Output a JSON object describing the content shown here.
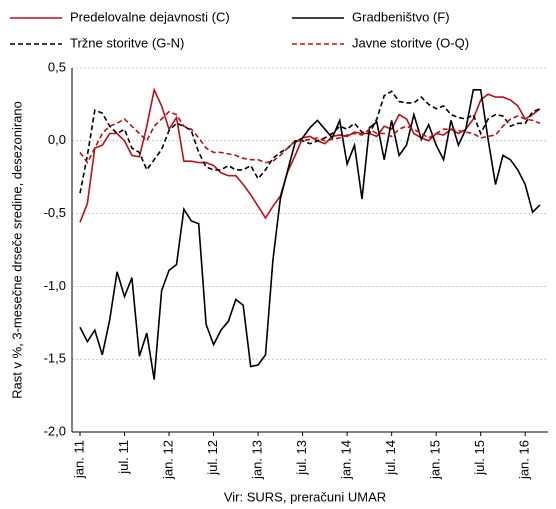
{
  "chart_data": {
    "type": "line",
    "y_label": "Rast v %, 3-mesečne drseče sredine, desezonirano",
    "source": "Vir: SURS, preračuni UMAR",
    "categories": [
      "jan. 11",
      null,
      null,
      null,
      null,
      null,
      "jul. 11",
      null,
      null,
      null,
      null,
      null,
      "jan. 12",
      null,
      null,
      null,
      null,
      null,
      "jul. 12",
      null,
      null,
      null,
      null,
      null,
      "jan. 13",
      null,
      null,
      null,
      null,
      null,
      "jul. 13",
      null,
      null,
      null,
      null,
      null,
      "jan. 14",
      null,
      null,
      null,
      null,
      null,
      "jul. 14",
      null,
      null,
      null,
      null,
      null,
      "jan. 15",
      null,
      null,
      null,
      null,
      null,
      "jul. 15",
      null,
      null,
      null,
      null,
      null,
      "jan. 16",
      null,
      null
    ],
    "ylim": [
      -2.0,
      0.5
    ],
    "yticks": [
      {
        "value": 0.5,
        "label": "0,5"
      },
      {
        "value": 0.0,
        "label": "0,0"
      },
      {
        "value": -0.5,
        "label": "-0,5"
      },
      {
        "value": -1.0,
        "label": "-1,0"
      },
      {
        "value": -1.5,
        "label": "-1,5"
      },
      {
        "value": -2.0,
        "label": "-2,0"
      }
    ],
    "grid": true,
    "series": [
      {
        "name": "Predelovalne dejavnosti (C)",
        "color": "#b5121b",
        "dash": "solid",
        "values": [
          -0.56,
          -0.43,
          -0.05,
          -0.03,
          0.05,
          0.05,
          0.0,
          -0.1,
          -0.11,
          0.1,
          0.35,
          0.24,
          0.08,
          0.16,
          -0.14,
          -0.14,
          -0.15,
          -0.15,
          -0.17,
          -0.22,
          -0.24,
          -0.24,
          -0.3,
          -0.37,
          -0.45,
          -0.53,
          -0.45,
          -0.38,
          -0.21,
          -0.1,
          0.02,
          0.03,
          0.0,
          -0.02,
          0.03,
          0.04,
          0.03,
          0.06,
          0.05,
          0.05,
          0.03,
          0.1,
          0.08,
          0.18,
          0.15,
          0.05,
          0.02,
          0.0,
          0.05,
          0.04,
          0.08,
          0.05,
          0.08,
          0.15,
          0.28,
          0.32,
          0.3,
          0.3,
          0.28,
          0.24,
          0.15,
          0.18,
          0.22
        ]
      },
      {
        "name": "Gradbeništvo (F)",
        "color": "#000000",
        "dash": "solid",
        "values": [
          -1.28,
          -1.38,
          -1.3,
          -1.47,
          -1.23,
          -0.9,
          -1.07,
          -0.94,
          -1.48,
          -1.32,
          -1.64,
          -1.03,
          -0.89,
          -0.85,
          -0.47,
          -0.55,
          -0.57,
          -1.26,
          -1.4,
          -1.3,
          -1.24,
          -1.09,
          -1.13,
          -1.55,
          -1.54,
          -1.47,
          -0.82,
          -0.4,
          -0.2,
          -0.01,
          0.02,
          0.09,
          0.14,
          0.08,
          0.02,
          0.14,
          -0.16,
          -0.03,
          -0.4,
          0.09,
          0.13,
          -0.13,
          0.14,
          -0.1,
          -0.03,
          0.18,
          0.01,
          0.11,
          -0.03,
          -0.13,
          0.14,
          -0.03,
          0.08,
          0.35,
          0.35,
          0.01,
          -0.3,
          -0.1,
          -0.13,
          -0.2,
          -0.3,
          -0.49,
          -0.44
        ]
      },
      {
        "name": "Tržne storitve (G-N)",
        "color": "#000000",
        "dash": "dashed",
        "values": [
          -0.36,
          -0.1,
          0.21,
          0.19,
          0.1,
          0.05,
          0.08,
          -0.05,
          -0.08,
          -0.2,
          -0.13,
          -0.06,
          0.07,
          0.12,
          0.1,
          0.07,
          -0.08,
          -0.18,
          -0.2,
          -0.2,
          -0.17,
          -0.2,
          -0.2,
          -0.17,
          -0.26,
          -0.2,
          -0.12,
          -0.08,
          -0.05,
          0.0,
          0.0,
          -0.02,
          0.0,
          0.02,
          0.05,
          0.1,
          0.08,
          0.12,
          0.06,
          0.05,
          0.15,
          0.31,
          0.34,
          0.27,
          0.26,
          0.26,
          0.3,
          0.25,
          0.22,
          0.24,
          0.18,
          0.16,
          0.15,
          0.18,
          0.05,
          0.15,
          0.18,
          0.17,
          0.1,
          0.12,
          0.12,
          0.2,
          0.22
        ]
      },
      {
        "name": "Javne storitve (O-Q)",
        "color": "#b5121b",
        "dash": "dashed",
        "values": [
          -0.08,
          -0.15,
          -0.05,
          0.05,
          0.1,
          0.12,
          0.15,
          0.1,
          0.05,
          0.0,
          0.1,
          0.15,
          0.2,
          0.18,
          0.1,
          0.08,
          0.02,
          -0.05,
          -0.08,
          -0.08,
          -0.09,
          -0.1,
          -0.12,
          -0.13,
          -0.13,
          -0.15,
          -0.14,
          -0.1,
          -0.05,
          0.0,
          0.0,
          0.01,
          0.02,
          0.0,
          0.01,
          0.02,
          0.04,
          0.05,
          0.04,
          0.08,
          0.05,
          0.05,
          0.03,
          0.08,
          0.1,
          0.08,
          0.05,
          0.02,
          0.05,
          0.08,
          0.08,
          0.07,
          0.06,
          0.05,
          0.02,
          0.03,
          0.04,
          0.1,
          0.15,
          0.17,
          0.15,
          0.14,
          0.12
        ]
      }
    ]
  }
}
